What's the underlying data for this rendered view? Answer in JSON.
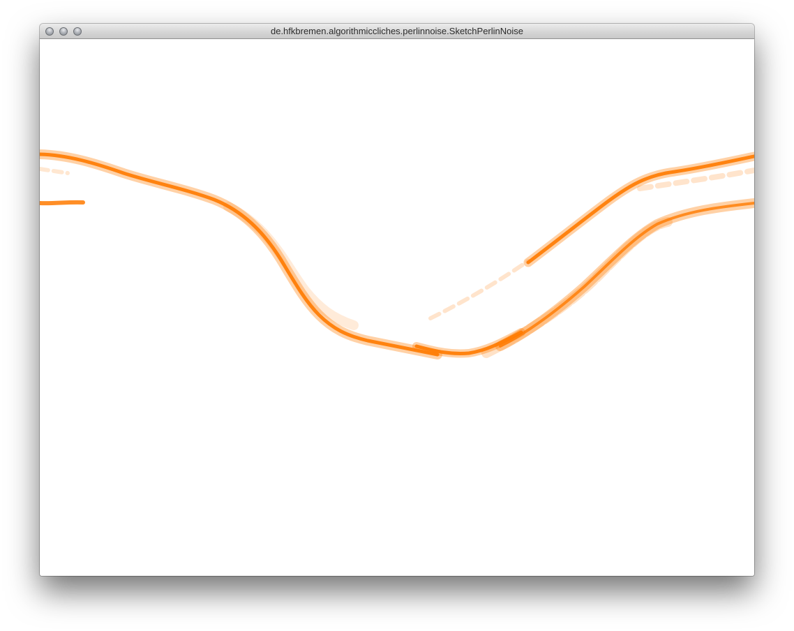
{
  "window": {
    "title": "de.hfkbremen.algorithmiccliches.perlinnoise.SketchPerlinNoise",
    "controls": [
      "close",
      "minimize",
      "zoom"
    ]
  },
  "sketch": {
    "stroke_color": "#ff7a00",
    "background_color": "#ffffff"
  }
}
